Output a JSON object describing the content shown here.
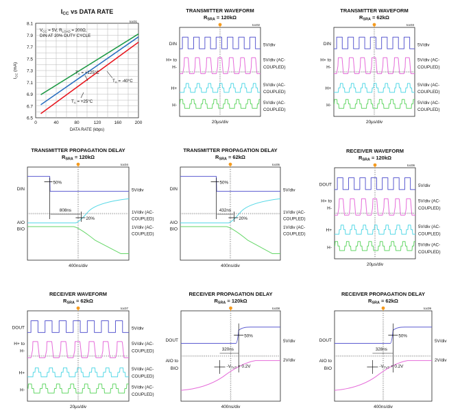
{
  "colors": {
    "red": "#e8161e",
    "blue": "#2a6fc1",
    "green": "#1f9a46",
    "din": "#5a5ad0",
    "pink": "#e56ad9",
    "cyan": "#54d8e6",
    "lgreen": "#62d665",
    "marker": "#f49a1e",
    "grid": "#b5b5b5"
  },
  "panels": [
    {
      "id": "icc",
      "title": "I",
      "title_sub": "CC",
      "title_rest": " vs DATA RATE",
      "toc": "toc01",
      "ylabel_main": "I",
      "ylabel_sub": "CC",
      "ylabel_rest": " (mA)",
      "xlabel": "DATA RATE (kbps)",
      "cond1": "V",
      "cond1_sub": "CC",
      "cond1_rest": " = 5V, R",
      "cond1_sub2": "LOAD",
      "cond1_end": " = 200Ω,",
      "cond2": "DIN AT 20% DUTY CYCLE",
      "lab_hot_pre": "T",
      "lab_hot_sub": "A",
      "lab_hot_rest": " = +125°C",
      "lab_room_pre": "T",
      "lab_room_sub": "A",
      "lab_room_rest": " = +25°C",
      "lab_cold_pre": "T",
      "lab_cold_sub": "A",
      "lab_cold_rest": " = -40°C"
    },
    {
      "id": "tw120",
      "title": "TRANSMITTER WAVEFORM",
      "rsra": "R",
      "rsra_sub": "SRA",
      "rsra_rest": " = 120kΩ",
      "toc": "toc02",
      "xlabel": "20µs/div",
      "l1": "DIN",
      "l2a": "H+ to",
      "l2b": "H-",
      "l3": "H+",
      "l4": "H-",
      "r1": "5V/div",
      "r2a": "5V/div (AC-",
      "r2b": "COUPLED)",
      "r3a": "5V/div (AC-",
      "r3b": "COUPLED)",
      "r4a": "5V/div (AC-",
      "r4b": "COUPLED)"
    },
    {
      "id": "tw62",
      "title": "TRANSMITTER WAVEFORM",
      "rsra": "R",
      "rsra_sub": "SRA",
      "rsra_rest": " = 62kΩ",
      "toc": "toc03",
      "xlabel": "20µs/div",
      "l1": "DIN",
      "l2a": "H+ to",
      "l2b": "H-",
      "l3": "H+",
      "l4": "H-",
      "r1": "5V/div",
      "r2a": "5V/div (AC-",
      "r2b": "COUPLED)",
      "r3a": "5V/div (AC-",
      "r3b": "COUPLED)",
      "r4a": "5V/div (AC-",
      "r4b": "COUPLED)"
    },
    {
      "id": "tp120",
      "title": "TRANSMITTER PROPAGATION DELAY",
      "rsra": "R",
      "rsra_sub": "SRA",
      "rsra_rest": " = 120kΩ",
      "toc": "toc04",
      "xlabel": "400ns/div",
      "l1": "DIN",
      "l2a": "AIO",
      "l2b": "BIO",
      "r1": "5V/div",
      "r2a": "1V/div (AC-",
      "r2b": "COUPLED)",
      "r3a": "1V/div (AC-",
      "r3b": "COUPLED)",
      "pct_a": "50%",
      "pct_b": "20%",
      "delay": "808ns"
    },
    {
      "id": "tp62",
      "title": "TRANSMITTER PROPAGATION DELAY",
      "rsra": "R",
      "rsra_sub": "SRA",
      "rsra_rest": " = 62kΩ",
      "toc": "toc05",
      "xlabel": "400ns/div",
      "l1": "DIN",
      "l2a": "AIO",
      "l2b": "BIO",
      "r1": "5V/div",
      "r2a": "1V/div (AC-",
      "r2b": "COUPLED)",
      "r3a": "1V/div (AC-",
      "r3b": "COUPLED)",
      "pct_a": "50%",
      "pct_b": "20%",
      "delay": "432ns"
    },
    {
      "id": "rw120",
      "title": "RECEIVER WAVEFORM",
      "rsra": "R",
      "rsra_sub": "SRA",
      "rsra_rest": " = 120kΩ",
      "toc": "toc06",
      "xlabel": "20µs/div",
      "l1": "DOUT",
      "l2a": "H+ to",
      "l2b": "H-",
      "l3": "H+",
      "l4": "H-",
      "r1": "5V/div",
      "r2a": "5V/div (AC-",
      "r2b": "COUPLED)",
      "r3a": "5V/div (AC-",
      "r3b": "COUPLED)",
      "r4a": "5V/div (AC-",
      "r4b": "COUPLED)"
    },
    {
      "id": "rw62",
      "title": "RECEIVER WAVEFORM",
      "rsra": "R",
      "rsra_sub": "SRA",
      "rsra_rest": " = 62kΩ",
      "toc": "toc07",
      "xlabel": "20µs/div",
      "l1": "DOUT",
      "l2a": "H+ to",
      "l2b": "H-",
      "l3": "H+",
      "l4": "H-",
      "r1": "5V/div",
      "r2a": "5V/div (AC-",
      "r2b": "COUPLED)",
      "r3a": "5V/div (AC-",
      "r3b": "COUPLED)",
      "r4a": "5V/div (AC-",
      "r4b": "COUPLED)"
    },
    {
      "id": "rp120",
      "title": "RECEIVER PROPAGATION DELAY",
      "rsra": "R",
      "rsra_sub": "SRA",
      "rsra_rest": " = 120kΩ",
      "toc": "toc08",
      "xlabel": "400ns/div",
      "l1": "DOUT",
      "l2a": "AIO to",
      "l2b": "BIO",
      "r1": "5V/div",
      "r2": "2V/div",
      "pct_a": "50%",
      "delay": "320ns",
      "th_pre": "-V",
      "th_sub": "TVT",
      "th_rest": " + 0.2V"
    },
    {
      "id": "rp62",
      "title": "RECEIVER PROPAGATION DELAY",
      "rsra": "R",
      "rsra_sub": "SRA",
      "rsra_rest": " = 62kΩ",
      "toc": "toc09",
      "xlabel": "400ns/div",
      "l1": "DOUT",
      "l2a": "AIO to",
      "l2b": "BIO",
      "r1": "5V/div",
      "r2": "2V/div",
      "pct_a": "50%",
      "delay": "328ns",
      "th_pre": "-V",
      "th_sub": "TVT",
      "th_rest": " + 0.2V"
    }
  ],
  "chart_data": [
    {
      "type": "line",
      "title": "ICC vs DATA RATE",
      "xlabel": "DATA RATE (kbps)",
      "ylabel": "ICC (mA)",
      "xlim": [
        0,
        200
      ],
      "ylim": [
        6.5,
        8.1
      ],
      "xticks": [
        0,
        40,
        80,
        120,
        160,
        200
      ],
      "yticks": [
        6.5,
        6.7,
        6.9,
        7.1,
        7.3,
        7.5,
        7.7,
        7.9,
        8.1
      ],
      "xtick_labels": [
        "0",
        "40",
        "80",
        "120",
        "160",
        "200"
      ],
      "ytick_labels": [
        "6.5",
        "6.7",
        "6.9",
        "7.1",
        "7.3",
        "7.5",
        "7.7",
        "7.9",
        "8.1"
      ],
      "grid": true,
      "series": [
        {
          "name": "TA = +125°C",
          "color": "green",
          "x": [
            10,
            200
          ],
          "y": [
            6.89,
            7.92
          ]
        },
        {
          "name": "TA = +25°C",
          "color": "blue",
          "x": [
            10,
            200
          ],
          "y": [
            6.72,
            7.87
          ]
        },
        {
          "name": "TA = -40°C",
          "color": "red",
          "x": [
            10,
            200
          ],
          "y": [
            6.57,
            7.78
          ]
        }
      ]
    },
    {
      "type": "line",
      "title": "TRANSMITTER WAVEFORM",
      "xlabel": "20µs/div",
      "series": [
        {
          "name": "DIN"
        },
        {
          "name": "H+ to H-"
        },
        {
          "name": "H+"
        },
        {
          "name": "H-"
        }
      ]
    },
    {
      "type": "line",
      "title": "TRANSMITTER WAVEFORM",
      "xlabel": "20µs/div",
      "series": [
        {
          "name": "DIN"
        },
        {
          "name": "H+ to H-"
        },
        {
          "name": "H+"
        },
        {
          "name": "H-"
        }
      ]
    },
    {
      "type": "line",
      "title": "TRANSMITTER PROPAGATION DELAY",
      "xlabel": "400ns/div",
      "series": [
        {
          "name": "DIN"
        },
        {
          "name": "AIO"
        },
        {
          "name": "BIO"
        }
      ]
    },
    {
      "type": "line",
      "title": "TRANSMITTER PROPAGATION DELAY",
      "xlabel": "400ns/div",
      "series": [
        {
          "name": "DIN"
        },
        {
          "name": "AIO"
        },
        {
          "name": "BIO"
        }
      ]
    },
    {
      "type": "line",
      "title": "RECEIVER WAVEFORM",
      "xlabel": "20µs/div",
      "series": [
        {
          "name": "DOUT"
        },
        {
          "name": "H+ to H-"
        },
        {
          "name": "H+"
        },
        {
          "name": "H-"
        }
      ]
    },
    {
      "type": "line",
      "title": "RECEIVER WAVEFORM",
      "xlabel": "20µs/div",
      "series": [
        {
          "name": "DOUT"
        },
        {
          "name": "H+ to H-"
        },
        {
          "name": "H+"
        },
        {
          "name": "H-"
        }
      ]
    },
    {
      "type": "line",
      "title": "RECEIVER PROPAGATION DELAY",
      "xlabel": "400ns/div",
      "series": [
        {
          "name": "DOUT"
        },
        {
          "name": "AIO to BIO"
        }
      ]
    },
    {
      "type": "line",
      "title": "RECEIVER PROPAGATION DELAY",
      "xlabel": "400ns/div",
      "series": [
        {
          "name": "DOUT"
        },
        {
          "name": "AIO to BIO"
        }
      ]
    }
  ]
}
